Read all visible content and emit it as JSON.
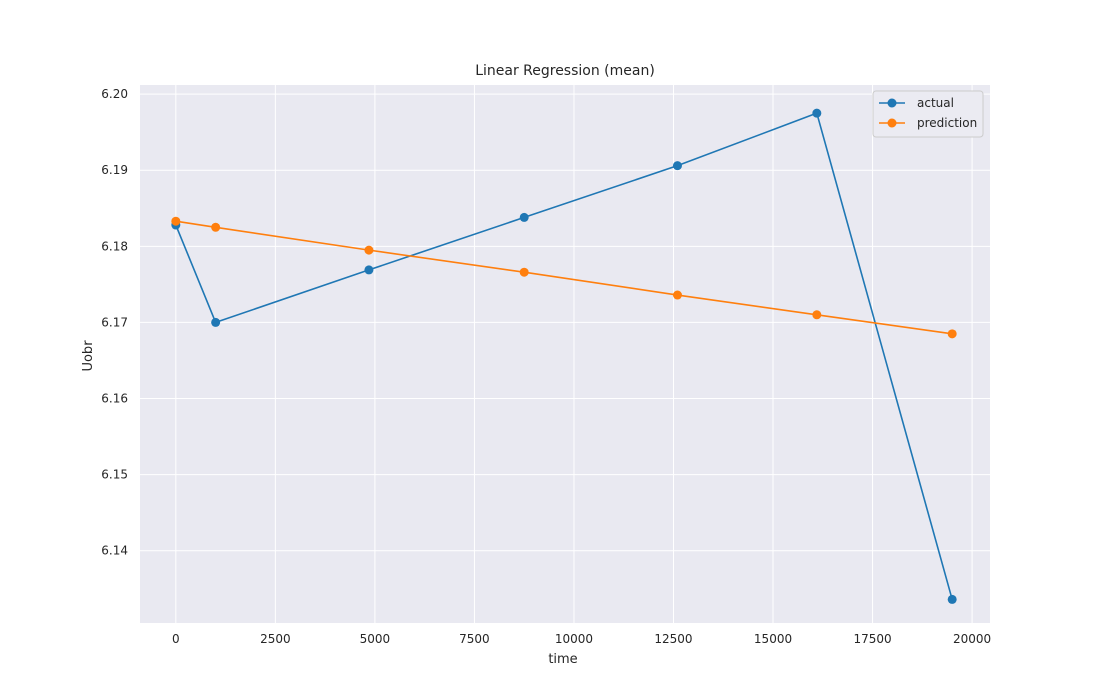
{
  "chart_data": {
    "type": "line",
    "title": "Linear Regression (mean)",
    "xlabel": "time",
    "ylabel": "Uobr",
    "xlim": [
      -900,
      20450
    ],
    "ylim": [
      6.1305,
      6.2012
    ],
    "xticks": [
      0,
      2500,
      5000,
      7500,
      10000,
      12500,
      15000,
      17500,
      20000
    ],
    "xtick_labels": [
      "0",
      "2500",
      "5000",
      "7500",
      "10000",
      "12500",
      "15000",
      "17500",
      "20000"
    ],
    "yticks": [
      6.14,
      6.15,
      6.16,
      6.17,
      6.18,
      6.19,
      6.2
    ],
    "ytick_labels": [
      "6.14",
      "6.15",
      "6.16",
      "6.17",
      "6.18",
      "6.19",
      "6.20"
    ],
    "grid": true,
    "legend_position": "top-right",
    "background_color": "#e9e9f1",
    "grid_color": "#ffffff",
    "series": [
      {
        "name": "actual",
        "color": "#1f77b4",
        "x": [
          0,
          1000,
          4850,
          8750,
          12600,
          16100,
          19500
        ],
        "y": [
          6.1828,
          6.17,
          6.1769,
          6.1838,
          6.1906,
          6.1975,
          6.1336
        ]
      },
      {
        "name": "prediction",
        "color": "#ff7f0e",
        "x": [
          0,
          1000,
          4850,
          8750,
          12600,
          16100,
          19500
        ],
        "y": [
          6.1833,
          6.1825,
          6.1795,
          6.1766,
          6.1736,
          6.171,
          6.1685
        ]
      }
    ]
  }
}
